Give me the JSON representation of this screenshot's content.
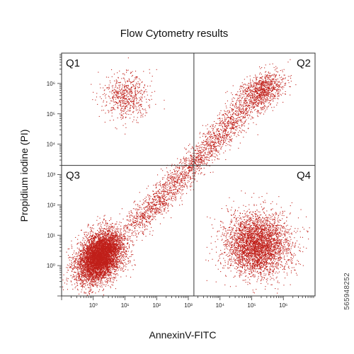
{
  "chart_data": {
    "type": "scatter",
    "title": "Flow Cytometry results",
    "xlabel": "AnnexinV-FITC",
    "ylabel": "Propidium iodine (PI)",
    "xscale": "log",
    "yscale": "log",
    "xlim": [
      0.1,
      10000000
    ],
    "ylim": [
      0.1,
      10000000
    ],
    "x_tick_labels": [
      {
        "value": 1,
        "label": "10⁰"
      },
      {
        "value": 10,
        "label": "10¹"
      },
      {
        "value": 100,
        "label": "10²"
      },
      {
        "value": 1000,
        "label": "10³"
      },
      {
        "value": 10000,
        "label": "10⁴"
      },
      {
        "value": 100000,
        "label": "10⁵"
      },
      {
        "value": 1000000,
        "label": "10⁶"
      }
    ],
    "y_tick_labels": [
      {
        "value": 1,
        "label": "10⁰"
      },
      {
        "value": 10,
        "label": "10¹"
      },
      {
        "value": 100,
        "label": "10²"
      },
      {
        "value": 1000,
        "label": "10³"
      },
      {
        "value": 10000,
        "label": "10⁴"
      },
      {
        "value": 100000,
        "label": "10⁵"
      },
      {
        "value": 1000000,
        "label": "10⁶"
      }
    ],
    "gates": {
      "x": 1500,
      "y": 2000
    },
    "quadrants": [
      {
        "label": "Q1",
        "position": "top-left"
      },
      {
        "label": "Q2",
        "position": "top-right"
      },
      {
        "label": "Q3",
        "position": "bottom-left"
      },
      {
        "label": "Q4",
        "position": "bottom-right"
      }
    ],
    "point_color": "#c0201a",
    "populations": [
      {
        "quadrant": "Q3",
        "count": 6500,
        "center": [
          1.6,
          2.0
        ],
        "spread": [
          0.36,
          0.42
        ],
        "corr": 0.35
      },
      {
        "quadrant": "Q4",
        "count": 3800,
        "center": [
          150000,
          5
        ],
        "spread": [
          0.5,
          0.5
        ],
        "corr": 0.0
      },
      {
        "quadrant": "Q1",
        "count": 650,
        "center": [
          10,
          400000
        ],
        "spread": [
          0.35,
          0.38
        ],
        "corr": 0.0
      },
      {
        "quadrant": "Q2",
        "count": 1100,
        "center": [
          200000,
          550000
        ],
        "spread": [
          0.35,
          0.32
        ],
        "corr": 0.4
      }
    ],
    "diagonal_trail": {
      "from": [
        20,
        20
      ],
      "to": [
        60000,
        150000
      ],
      "count": 2200
    },
    "grid": false,
    "legend": "none"
  },
  "watermark": {
    "side_id": "565948252"
  }
}
